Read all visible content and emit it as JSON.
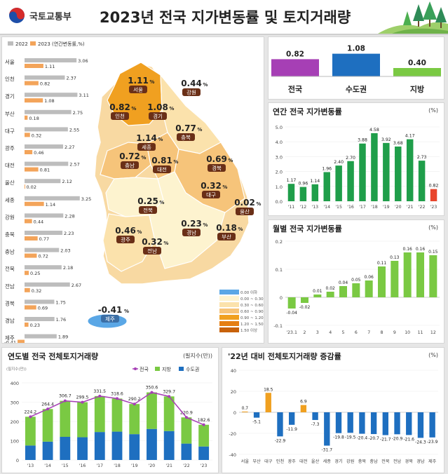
{
  "header": {
    "ministry": "국토교통부",
    "title": "2023년 전국 지가변동률 및 토지거래량"
  },
  "colors": {
    "y2022": "#bdbdbd",
    "y2023": "#f3a45a",
    "green": "#7ac943",
    "darkgreen": "#1f9e4a",
    "red": "#e8452c",
    "purple": "#a63fb5",
    "blue": "#1e6fc0",
    "orange": "#f0a020"
  },
  "chart_data": [
    {
      "type": "bar",
      "title": "",
      "legend": [
        "2022",
        "2023 (연간변동률,%)"
      ],
      "categories": [
        "서울",
        "인천",
        "경기",
        "부산",
        "대구",
        "광주",
        "대전",
        "울산",
        "세종",
        "강원",
        "충북",
        "충남",
        "전북",
        "전남",
        "경북",
        "경남",
        "제주"
      ],
      "series": [
        {
          "name": "2022",
          "values": [
            3.06,
            2.37,
            3.11,
            2.75,
            2.55,
            2.27,
            2.57,
            2.12,
            3.25,
            2.28,
            2.23,
            2.03,
            2.18,
            2.67,
            1.75,
            1.76,
            1.89
          ]
        },
        {
          "name": "2023",
          "values": [
            1.11,
            0.82,
            1.08,
            0.18,
            0.32,
            0.46,
            0.81,
            0.02,
            1.14,
            0.44,
            0.77,
            0.72,
            0.25,
            0.32,
            0.69,
            0.23,
            -0.41
          ]
        }
      ],
      "map_labels": [
        {
          "region": "서울",
          "value": "1.11"
        },
        {
          "region": "인천",
          "value": "0.82"
        },
        {
          "region": "경기",
          "value": "1.08"
        },
        {
          "region": "강원",
          "value": "0.44"
        },
        {
          "region": "세종",
          "value": "1.14"
        },
        {
          "region": "충북",
          "value": "0.77"
        },
        {
          "region": "충남",
          "value": "0.72"
        },
        {
          "region": "대전",
          "value": "0.81"
        },
        {
          "region": "경북",
          "value": "0.69"
        },
        {
          "region": "대구",
          "value": "0.32"
        },
        {
          "region": "울산",
          "value": "0.02"
        },
        {
          "region": "전북",
          "value": "0.25"
        },
        {
          "region": "광주",
          "value": "0.46"
        },
        {
          "region": "전남",
          "value": "0.32"
        },
        {
          "region": "경남",
          "value": "0.23"
        },
        {
          "region": "부산",
          "value": "0.18"
        },
        {
          "region": "제주",
          "value": "-0.41"
        }
      ],
      "map_legend": [
        {
          "label": "0.00 이하",
          "color": "#5aa7e6"
        },
        {
          "label": "0.00 ~ 0.30",
          "color": "#fdf3cf"
        },
        {
          "label": "0.30 ~ 0.60",
          "color": "#fbe2ac"
        },
        {
          "label": "0.60 ~ 0.90",
          "color": "#f6c47a"
        },
        {
          "label": "0.90 ~ 1.20",
          "color": "#f0a020"
        },
        {
          "label": "1.20 ~ 1.50",
          "color": "#e57e12"
        },
        {
          "label": "1.50 이상",
          "color": "#c8620a"
        }
      ],
      "map_value_unit": "%"
    },
    {
      "type": "bar",
      "title": "",
      "categories": [
        "전국",
        "수도권",
        "지방"
      ],
      "values": [
        0.82,
        1.08,
        0.4
      ]
    },
    {
      "type": "bar",
      "title": "연간 전국 지가변동률",
      "unit": "(%)",
      "categories": [
        "'11",
        "'12",
        "'13",
        "'14",
        "'15",
        "'16",
        "'17",
        "'18",
        "'19",
        "'20",
        "'21",
        "'22",
        "'23"
      ],
      "values": [
        1.17,
        0.96,
        1.14,
        1.96,
        2.4,
        2.7,
        3.88,
        4.58,
        3.92,
        3.68,
        4.17,
        2.73,
        0.82
      ],
      "value_labels": [
        "1.17",
        "0.96",
        "1.14",
        "1.96",
        "2.40",
        "2.70",
        "3.88",
        "4.58",
        "3.92",
        "3.68",
        "4.17",
        "2.73",
        "0.82"
      ],
      "ylim": [
        0,
        5.0
      ],
      "yticks": [
        "0.0",
        "1.0",
        "2.0",
        "3.0",
        "4.0",
        "5.0"
      ]
    },
    {
      "type": "bar",
      "title": "월별 전국 지가변동률",
      "unit": "(%)",
      "categories": [
        "'23.1",
        "2",
        "3",
        "4",
        "5",
        "6",
        "7",
        "8",
        "9",
        "10",
        "11",
        "12"
      ],
      "values": [
        -0.04,
        -0.02,
        0.01,
        0.02,
        0.04,
        0.05,
        0.06,
        0.11,
        0.13,
        0.16,
        0.16,
        0.15
      ],
      "ylim": [
        -0.1,
        0.2
      ],
      "yticks": [
        "-0.1",
        "0",
        "0.1",
        "0.2"
      ]
    },
    {
      "type": "bar",
      "title": "연도별 전국 전체토지거래량",
      "unit": "(필지수(만))",
      "axis_note": "(필지수(만))",
      "categories": [
        "'13",
        "'14",
        "'15",
        "'16",
        "'17",
        "'18",
        "'19",
        "'20",
        "'21",
        "'22",
        "'23"
      ],
      "series": [
        {
          "name": "전국",
          "values": [
            224.2,
            264.4,
            306.7,
            299.5,
            331.5,
            318.6,
            290.2,
            350.6,
            329.7,
            220.9,
            182.6
          ]
        },
        {
          "name": "지방",
          "values": [
            149.2,
            169.4,
            186.7,
            181.5,
            186.5,
            171.6,
            156.2,
            189.6,
            179.7,
            135.9,
            112.6
          ]
        },
        {
          "name": "수도권",
          "values": [
            75,
            95,
            120,
            118,
            145,
            147,
            134,
            161,
            150,
            85,
            70
          ]
        }
      ],
      "ylim": [
        0,
        400
      ],
      "yticks": [
        "0",
        "100",
        "200",
        "300",
        "400"
      ]
    },
    {
      "type": "bar",
      "title": "'22년 대비 전체토지거래량 증감률",
      "unit": "(%)",
      "categories": [
        "서울",
        "부산",
        "대구",
        "인천",
        "광주",
        "대전",
        "울산",
        "세종",
        "경기",
        "강원",
        "충북",
        "충남",
        "전북",
        "전남",
        "경북",
        "경남",
        "제주"
      ],
      "values": [
        0.7,
        -5.1,
        18.5,
        -22.9,
        -11.9,
        6.9,
        -7.3,
        -31.7,
        -19.8,
        -19.5,
        -20.4,
        -20.7,
        -21.7,
        -20.9,
        -21.6,
        -24.3,
        -23.9
      ],
      "ylim": [
        -40,
        40
      ],
      "yticks": [
        "40",
        "20",
        "0",
        "-20",
        "-40"
      ]
    }
  ]
}
